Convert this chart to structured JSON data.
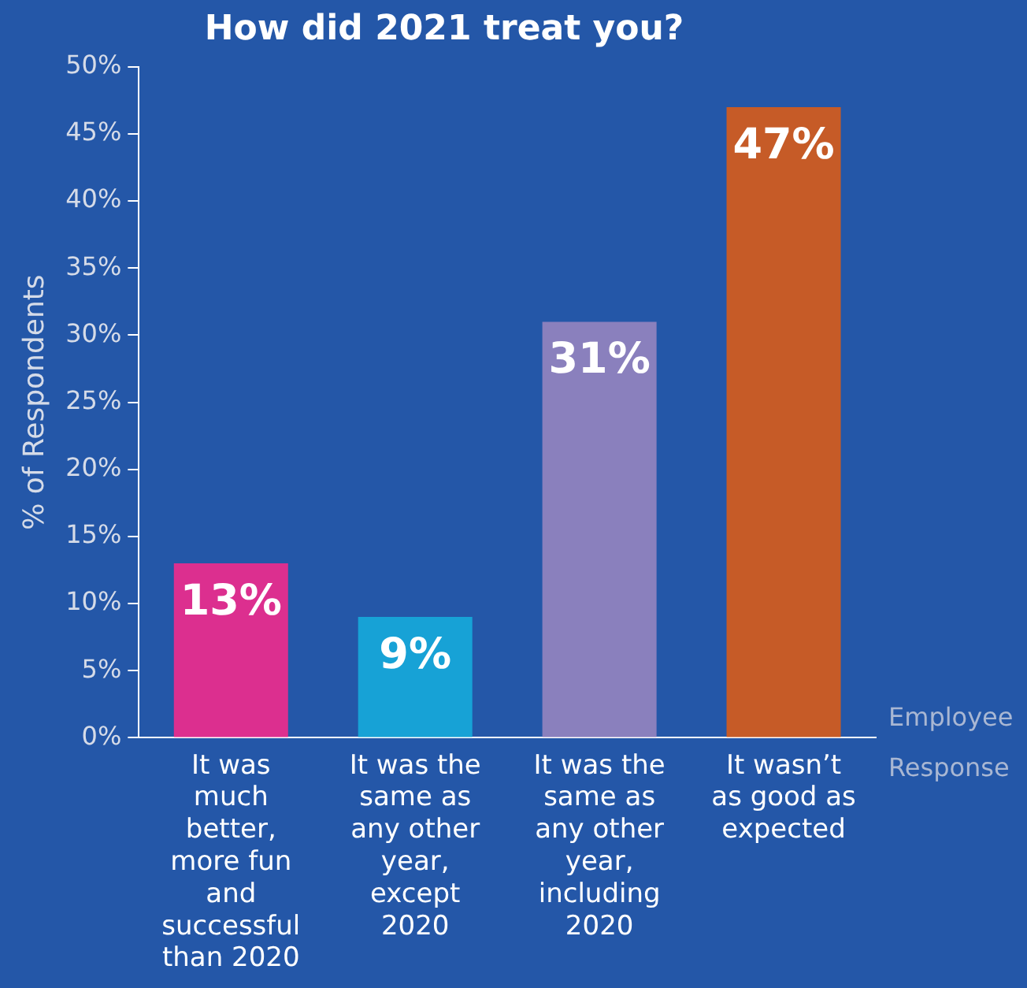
{
  "chart_data": {
    "type": "bar",
    "title": "How did 2021 treat you?",
    "xlabel": "Employee Response",
    "ylabel": "% of Respondents",
    "categories": [
      "It was much better, more fun and successful than 2020",
      "It was the same as any other year, except 2020",
      "It was the same as any other year, including 2020",
      "It wasn’t as good as expected"
    ],
    "values": [
      13,
      9,
      31,
      47
    ],
    "colors": [
      "#dc2f8f",
      "#17a2d6",
      "#8a80bd",
      "#c65b27"
    ],
    "value_labels": [
      "13%",
      "9%",
      "31%",
      "47%"
    ],
    "ylim": [
      0,
      50
    ],
    "yticks": [
      {
        "value": 0,
        "label": "0%"
      },
      {
        "value": 5,
        "label": "5%"
      },
      {
        "value": 10,
        "label": "10%"
      },
      {
        "value": 15,
        "label": "15%"
      },
      {
        "value": 20,
        "label": "20%"
      },
      {
        "value": 25,
        "label": "25%"
      },
      {
        "value": 30,
        "label": "30%"
      },
      {
        "value": 35,
        "label": "35%"
      },
      {
        "value": 40,
        "label": "40%"
      },
      {
        "value": 45,
        "label": "45%"
      },
      {
        "value": 50,
        "label": "50%"
      }
    ],
    "grid": false,
    "legend": false
  }
}
